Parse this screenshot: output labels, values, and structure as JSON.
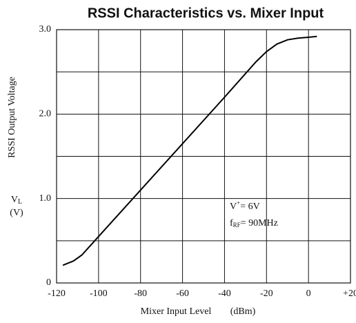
{
  "chart_data": {
    "type": "line",
    "title": "RSSI Characteristics vs. Mixer Input",
    "y_label": "RSSI Output Voltage",
    "y_unit": {
      "symbol": "V",
      "sub": "L",
      "unit": "(V)"
    },
    "x_label": "Mixer Input Level",
    "x_unit": "(dBm)",
    "annotations": [
      {
        "pre": "V",
        "sup": "+",
        "post": "= 6V"
      },
      {
        "pre": "f",
        "sub": "RF",
        "post": "= 90MHz"
      }
    ],
    "x": [
      -117,
      -112,
      -108,
      -100,
      -80,
      -60,
      -40,
      -25,
      -20,
      -15,
      -10,
      -5,
      0,
      4
    ],
    "series": [
      {
        "color": "#000000",
        "values": [
          0.21,
          0.26,
          0.33,
          0.55,
          1.1,
          1.65,
          2.2,
          2.62,
          2.74,
          2.83,
          2.88,
          2.9,
          2.91,
          2.92
        ]
      }
    ],
    "xlim": [
      -120,
      20
    ],
    "ylim": [
      0,
      3
    ],
    "xticks": [
      -120,
      -100,
      -80,
      -60,
      -40,
      -20,
      0,
      {
        "value": 20,
        "label": "+20"
      }
    ],
    "yticks": [
      0,
      {
        "value": 1,
        "label": "1.0"
      },
      {
        "value": 2,
        "label": "2.0"
      },
      {
        "value": 3,
        "label": "3.0"
      }
    ],
    "yminor": [
      0.5,
      1.5,
      2.5
    ],
    "grid": true
  }
}
